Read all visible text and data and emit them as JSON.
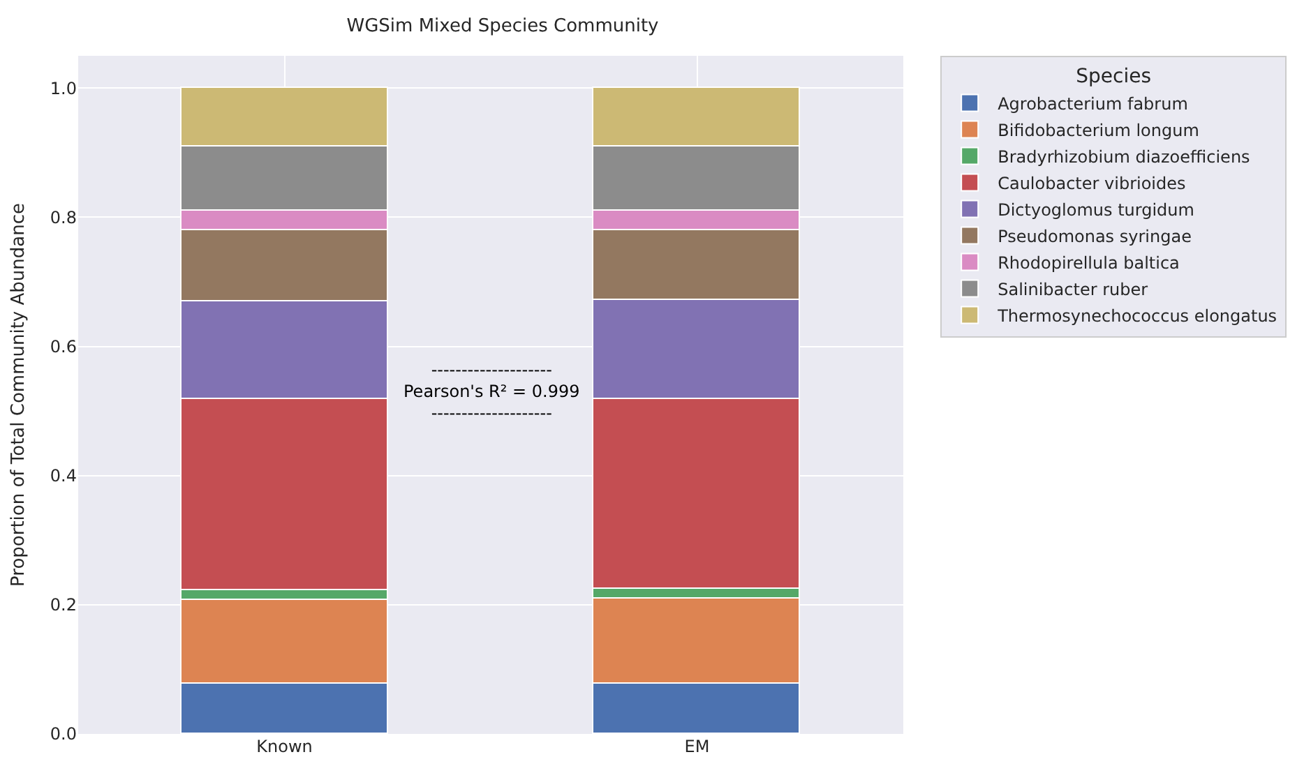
{
  "chart_data": {
    "type": "bar",
    "stacked": true,
    "title": "WGSim Mixed Species Community",
    "ylabel": "Proportion of Total Community Abundance",
    "legend_title": "Species",
    "legend": "top right",
    "grid": true,
    "categories": [
      "Known",
      "EM"
    ],
    "ylim": [
      0,
      1.05
    ],
    "yticks": [
      {
        "value": 0,
        "label": "0.0"
      },
      {
        "value": 0.2,
        "label": "0.2"
      },
      {
        "value": 0.4,
        "label": "0.4"
      },
      {
        "value": 0.6,
        "label": "0.6"
      },
      {
        "value": 0.8,
        "label": "0.8"
      },
      {
        "value": 1,
        "label": "1.0"
      }
    ],
    "series": [
      {
        "name": "Agrobacterium fabrum",
        "color": "#4c72b0",
        "values": [
          0.077,
          0.077
        ]
      },
      {
        "name": "Bifidobacterium longum",
        "color": "#dd8452",
        "values": [
          0.131,
          0.132
        ]
      },
      {
        "name": "Bradyrhizobium diazoefficiens",
        "color": "#55a868",
        "values": [
          0.015,
          0.015
        ]
      },
      {
        "name": "Caulobacter vibrioides",
        "color": "#c44e52",
        "values": [
          0.295,
          0.295
        ]
      },
      {
        "name": "Dictyoglomus turgidum",
        "color": "#8172b3",
        "values": [
          0.152,
          0.152
        ]
      },
      {
        "name": "Pseudomonas syringae",
        "color": "#937860",
        "values": [
          0.109,
          0.108
        ]
      },
      {
        "name": "Rhodopirellula baltica",
        "color": "#da8bc3",
        "values": [
          0.031,
          0.031
        ]
      },
      {
        "name": "Salinibacter ruber",
        "color": "#8c8c8c",
        "values": [
          0.1,
          0.1
        ]
      },
      {
        "name": "Thermosynechococcus elongatus",
        "color": "#ccb974",
        "values": [
          0.09,
          0.09
        ]
      }
    ],
    "annotations": [
      "--------------------\nPearson's R² = 0.999\n--------------------"
    ]
  }
}
